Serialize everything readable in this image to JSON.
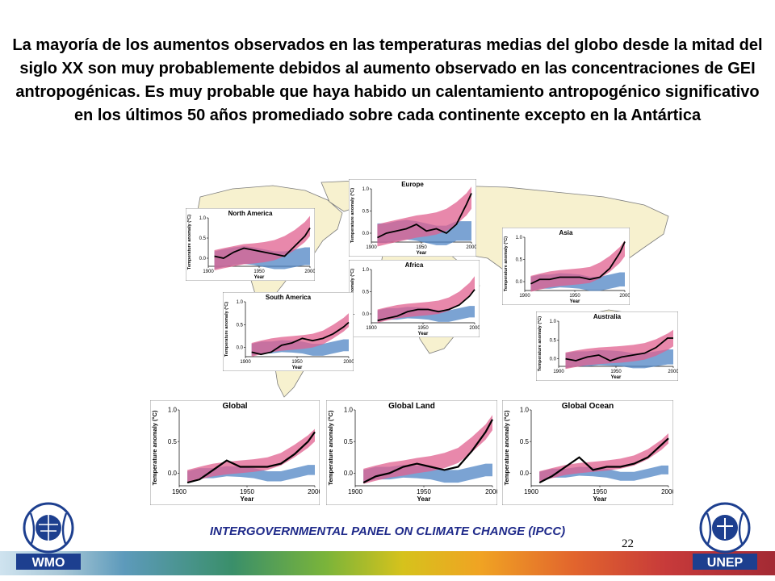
{
  "slide": {
    "title": "La mayoría de los aumentos observados en las temperaturas medias del globo desde la mitad del siglo XX son muy probablemente debidos al aumento observado en las concentraciones de GEI antropogénicas. Es muy probable que haya habido un calentamiento antropogénico significativo en los últimos 50 años promediado sobre cada continente excepto en la Antártica",
    "footer_label": "INTERGOVERNMENTAL PANEL ON CLIMATE CHANGE (IPCC)",
    "page_number": "22",
    "wmo_text": "WMO",
    "unep_text": "UNEP"
  },
  "colors": {
    "observed": "#000000",
    "models_all_forcings": "#e0608f",
    "models_natural_only": "#4f84c4",
    "map_land": "#f7f1cf",
    "map_ocean": "#ffffff"
  },
  "chart_data": [
    {
      "type": "line",
      "title": "North America",
      "xlabel": "Year",
      "ylabel": "Temperature anomaly (°C)",
      "xlim": [
        1900,
        2000
      ],
      "ylim": [
        -0.2,
        1.0
      ],
      "x": [
        1906,
        1915,
        1925,
        1935,
        1945,
        1955,
        1965,
        1975,
        1985,
        1995,
        2000
      ],
      "series": [
        {
          "name": "",
          "values": [
            0.05,
            0.0,
            0.15,
            0.25,
            0.2,
            0.15,
            0.1,
            0.05,
            0.3,
            0.55,
            0.75
          ]
        },
        {
          "name": "",
          "values": [
            -0.05,
            0.0,
            0.05,
            0.1,
            0.12,
            0.15,
            0.2,
            0.3,
            0.45,
            0.65,
            0.8
          ]
        },
        {
          "name": "",
          "values": [
            -0.05,
            0.0,
            0.05,
            0.08,
            0.05,
            0.0,
            -0.05,
            -0.05,
            0.0,
            0.05,
            0.05
          ]
        }
      ],
      "band_halfwidth": [
        0.25,
        0.22
      ]
    },
    {
      "type": "line",
      "title": "Europe",
      "xlabel": "Year",
      "ylabel": "Temperature anomaly (°C)",
      "xlim": [
        1900,
        2000
      ],
      "ylim": [
        -0.2,
        1.0
      ],
      "x": [
        1906,
        1915,
        1925,
        1935,
        1945,
        1955,
        1965,
        1975,
        1985,
        1995,
        2000
      ],
      "series": [
        {
          "name": "",
          "values": [
            -0.1,
            0.0,
            0.05,
            0.1,
            0.2,
            0.05,
            0.1,
            0.0,
            0.2,
            0.65,
            0.9
          ]
        },
        {
          "name": "",
          "values": [
            -0.05,
            0.0,
            0.05,
            0.1,
            0.15,
            0.18,
            0.22,
            0.3,
            0.45,
            0.65,
            0.8
          ]
        },
        {
          "name": "",
          "values": [
            0.0,
            0.0,
            0.05,
            0.08,
            0.05,
            0.0,
            -0.05,
            -0.05,
            0.05,
            0.05,
            0.05
          ]
        }
      ],
      "band_halfwidth": [
        0.25,
        0.22
      ]
    },
    {
      "type": "line",
      "title": "Asia",
      "xlabel": "Year",
      "ylabel": "Temperature anomaly (°C)",
      "xlim": [
        1900,
        2000
      ],
      "ylim": [
        -0.2,
        1.0
      ],
      "x": [
        1906,
        1915,
        1925,
        1935,
        1945,
        1955,
        1965,
        1975,
        1985,
        1995,
        2000
      ],
      "series": [
        {
          "name": "",
          "values": [
            -0.05,
            0.05,
            0.05,
            0.1,
            0.1,
            0.1,
            0.05,
            0.1,
            0.3,
            0.65,
            0.9
          ]
        },
        {
          "name": "",
          "values": [
            -0.05,
            0.0,
            0.05,
            0.08,
            0.1,
            0.12,
            0.15,
            0.25,
            0.4,
            0.6,
            0.75
          ]
        },
        {
          "name": "",
          "values": [
            -0.05,
            0.0,
            0.0,
            0.03,
            0.02,
            0.0,
            -0.05,
            -0.05,
            0.0,
            0.05,
            0.05
          ]
        }
      ],
      "band_halfwidth": [
        0.18,
        0.16
      ]
    },
    {
      "type": "line",
      "title": "Africa",
      "xlabel": "Year",
      "ylabel": "Temperature anomaly (°C)",
      "xlim": [
        1900,
        2000
      ],
      "ylim": [
        -0.2,
        1.0
      ],
      "x": [
        1906,
        1915,
        1925,
        1935,
        1945,
        1955,
        1965,
        1975,
        1985,
        1995,
        2000
      ],
      "series": [
        {
          "name": "",
          "values": [
            -0.15,
            -0.1,
            -0.05,
            0.05,
            0.1,
            0.1,
            0.05,
            0.1,
            0.2,
            0.4,
            0.55
          ]
        },
        {
          "name": "",
          "values": [
            -0.05,
            0.0,
            0.05,
            0.08,
            0.1,
            0.12,
            0.15,
            0.22,
            0.35,
            0.55,
            0.7
          ]
        },
        {
          "name": "",
          "values": [
            -0.05,
            0.0,
            0.0,
            0.03,
            0.02,
            0.0,
            -0.05,
            -0.05,
            0.0,
            0.05,
            0.05
          ]
        }
      ],
      "band_halfwidth": [
        0.15,
        0.13
      ]
    },
    {
      "type": "line",
      "title": "South America",
      "xlabel": "Year",
      "ylabel": "Temperature anomaly (°C)",
      "xlim": [
        1900,
        2000
      ],
      "ylim": [
        -0.2,
        1.0
      ],
      "x": [
        1906,
        1915,
        1925,
        1935,
        1945,
        1955,
        1965,
        1975,
        1985,
        1995,
        2000
      ],
      "series": [
        {
          "name": "",
          "values": [
            -0.1,
            -0.15,
            -0.1,
            0.05,
            0.1,
            0.2,
            0.15,
            0.2,
            0.3,
            0.45,
            0.55
          ]
        },
        {
          "name": "",
          "values": [
            -0.05,
            0.0,
            0.05,
            0.08,
            0.1,
            0.12,
            0.15,
            0.22,
            0.35,
            0.5,
            0.6
          ]
        },
        {
          "name": "",
          "values": [
            -0.05,
            0.0,
            0.0,
            0.03,
            0.02,
            0.0,
            -0.05,
            -0.05,
            0.0,
            0.05,
            0.05
          ]
        }
      ],
      "band_halfwidth": [
        0.15,
        0.13
      ]
    },
    {
      "type": "line",
      "title": "Australia",
      "xlabel": "Year",
      "ylabel": "Temperature anomaly (°C)",
      "xlim": [
        1900,
        2000
      ],
      "ylim": [
        -0.2,
        1.0
      ],
      "x": [
        1906,
        1915,
        1925,
        1935,
        1945,
        1955,
        1965,
        1975,
        1985,
        1995,
        2000
      ],
      "series": [
        {
          "name": "",
          "values": [
            0.0,
            -0.05,
            0.05,
            0.1,
            -0.05,
            0.05,
            0.1,
            0.15,
            0.3,
            0.55,
            0.55
          ]
        },
        {
          "name": "",
          "values": [
            -0.05,
            0.0,
            0.05,
            0.08,
            0.1,
            0.12,
            0.15,
            0.2,
            0.3,
            0.45,
            0.55
          ]
        },
        {
          "name": "",
          "values": [
            -0.05,
            0.0,
            0.0,
            0.03,
            0.02,
            0.0,
            -0.05,
            -0.05,
            0.0,
            0.05,
            0.05
          ]
        }
      ],
      "band_halfwidth": [
        0.22,
        0.2
      ]
    },
    {
      "type": "line",
      "title": "Global",
      "xlabel": "Year",
      "ylabel": "Temperature anomaly (°C)",
      "xlim": [
        1900,
        2000
      ],
      "ylim": [
        -0.2,
        1.0
      ],
      "x": [
        1906,
        1915,
        1925,
        1935,
        1945,
        1955,
        1965,
        1975,
        1985,
        1995,
        2000
      ],
      "series": [
        {
          "name": "",
          "values": [
            -0.15,
            -0.1,
            0.05,
            0.2,
            0.1,
            0.1,
            0.1,
            0.15,
            0.3,
            0.5,
            0.65
          ]
        },
        {
          "name": "",
          "values": [
            -0.05,
            0.0,
            0.05,
            0.08,
            0.1,
            0.12,
            0.15,
            0.22,
            0.35,
            0.5,
            0.6
          ]
        },
        {
          "name": "",
          "values": [
            -0.05,
            0.0,
            0.0,
            0.03,
            0.02,
            0.0,
            -0.05,
            -0.05,
            0.0,
            0.05,
            0.05
          ]
        }
      ],
      "band_halfwidth": [
        0.1,
        0.08
      ]
    },
    {
      "type": "line",
      "title": "Global Land",
      "xlabel": "Year",
      "ylabel": "Temperature anomaly (°C)",
      "xlim": [
        1900,
        2000
      ],
      "ylim": [
        -0.2,
        1.0
      ],
      "x": [
        1906,
        1915,
        1925,
        1935,
        1945,
        1955,
        1965,
        1975,
        1985,
        1995,
        2000
      ],
      "series": [
        {
          "name": "",
          "values": [
            -0.15,
            -0.05,
            0.0,
            0.1,
            0.15,
            0.1,
            0.05,
            0.1,
            0.35,
            0.65,
            0.85
          ]
        },
        {
          "name": "",
          "values": [
            -0.05,
            0.0,
            0.05,
            0.08,
            0.12,
            0.15,
            0.2,
            0.28,
            0.45,
            0.65,
            0.8
          ]
        },
        {
          "name": "",
          "values": [
            -0.05,
            0.0,
            0.0,
            0.03,
            0.02,
            0.0,
            -0.05,
            -0.05,
            0.0,
            0.05,
            0.05
          ]
        }
      ],
      "band_halfwidth": [
        0.12,
        0.1
      ]
    },
    {
      "type": "line",
      "title": "Global Ocean",
      "xlabel": "Year",
      "ylabel": "Temperature anomaly (°C)",
      "xlim": [
        1900,
        2000
      ],
      "ylim": [
        -0.2,
        1.0
      ],
      "x": [
        1906,
        1915,
        1925,
        1935,
        1945,
        1955,
        1965,
        1975,
        1985,
        1995,
        2000
      ],
      "series": [
        {
          "name": "",
          "values": [
            -0.15,
            -0.05,
            0.1,
            0.25,
            0.05,
            0.1,
            0.1,
            0.15,
            0.25,
            0.45,
            0.55
          ]
        },
        {
          "name": "",
          "values": [
            -0.05,
            0.0,
            0.05,
            0.08,
            0.1,
            0.12,
            0.15,
            0.2,
            0.3,
            0.45,
            0.55
          ]
        },
        {
          "name": "",
          "values": [
            -0.05,
            0.0,
            0.0,
            0.03,
            0.02,
            0.0,
            -0.05,
            -0.05,
            0.0,
            0.05,
            0.05
          ]
        }
      ],
      "band_halfwidth": [
        0.08,
        0.07
      ]
    }
  ]
}
